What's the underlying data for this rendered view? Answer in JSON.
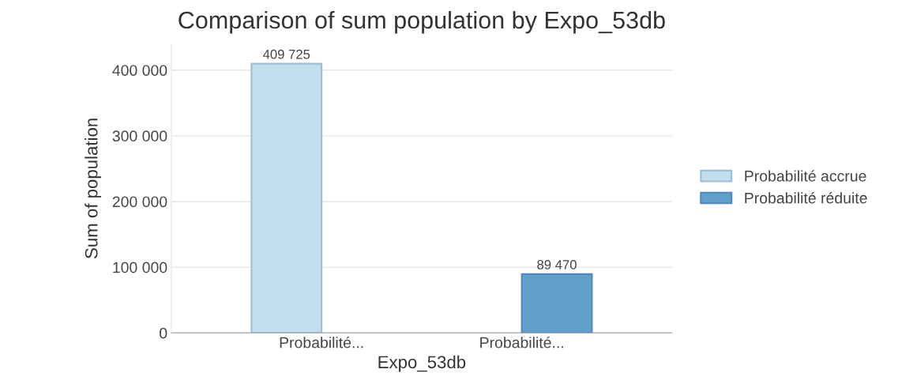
{
  "chart_data": {
    "type": "bar",
    "title": "Comparison of sum population by Expo_53db",
    "xlabel": "Expo_53db",
    "ylabel": "Sum of population",
    "categories": [
      "Probabilité...",
      "Probabilité..."
    ],
    "series": [
      {
        "name": "Probabilité accrue",
        "color": "#c2deec",
        "values": [
          409725,
          null
        ],
        "value_labels": [
          "409 725",
          null
        ]
      },
      {
        "name": "Probabilité réduite",
        "color": "#62a0cc",
        "values": [
          null,
          89470
        ],
        "value_labels": [
          null,
          "89 470"
        ]
      }
    ],
    "ylim": [
      0,
      440000
    ],
    "yticks": [
      {
        "value": 0,
        "label": "0"
      },
      {
        "value": 100000,
        "label": "100 000"
      },
      {
        "value": 200000,
        "label": "200 000"
      },
      {
        "value": 300000,
        "label": "300 000"
      },
      {
        "value": 400000,
        "label": "400 000"
      }
    ],
    "grid": "y",
    "legend": "right"
  }
}
